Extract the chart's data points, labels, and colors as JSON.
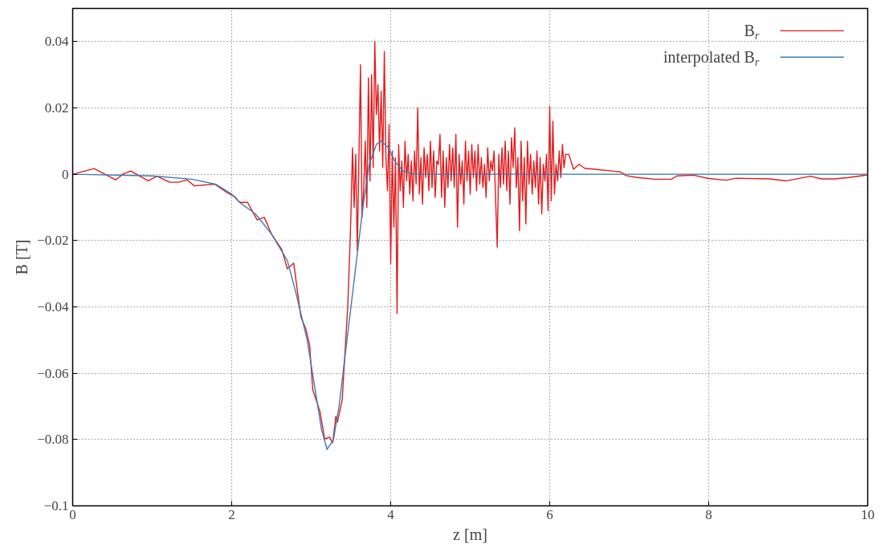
{
  "chart_data": {
    "type": "line",
    "xlabel": "z [m]",
    "ylabel": "B [T]",
    "xlim": [
      0,
      10
    ],
    "ylim": [
      -0.1,
      0.05
    ],
    "xticks": [
      0,
      2,
      4,
      6,
      8,
      10
    ],
    "yticks": [
      {
        "value": -0.1,
        "label": "−0.1"
      },
      {
        "value": -0.08,
        "label": "−0.08"
      },
      {
        "value": -0.06,
        "label": "−0.06"
      },
      {
        "value": -0.04,
        "label": "−0.04"
      },
      {
        "value": -0.02,
        "label": "−0.02"
      },
      0,
      0.02,
      0.04
    ],
    "grid": true,
    "legend": "top right",
    "line_style": "solid",
    "marker": "none",
    "series": [
      {
        "name": "B$_{r}$",
        "color": "#e41a1c",
        "x": [
          0,
          0.27,
          0.54,
          0.63,
          0.73,
          0.95,
          1.06,
          1.22,
          1.33,
          1.44,
          1.53,
          1.79,
          1.94,
          2.04,
          2.1,
          2.2,
          2.32,
          2.41,
          2.5,
          2.63,
          2.7,
          2.78,
          2.87,
          2.93,
          2.98,
          3.02,
          3.11,
          3.17,
          3.23,
          3.27,
          3.31,
          3.33,
          3.39,
          3.46,
          3.49,
          3.5,
          3.52,
          3.54,
          3.56,
          3.58,
          3.6,
          3.62,
          3.64,
          3.66,
          3.68,
          3.7,
          3.72,
          3.74,
          3.76,
          3.78,
          3.8,
          3.82,
          3.84,
          3.86,
          3.88,
          3.9,
          3.92,
          3.94,
          3.96,
          3.98,
          4.0,
          4.02,
          4.04,
          4.06,
          4.08,
          4.1,
          4.12,
          4.14,
          4.16,
          4.18,
          4.2,
          4.22,
          4.24,
          4.26,
          4.28,
          4.3,
          4.32,
          4.34,
          4.36,
          4.38,
          4.4,
          4.42,
          4.44,
          4.46,
          4.48,
          4.5,
          4.52,
          4.54,
          4.56,
          4.58,
          4.6,
          4.62,
          4.64,
          4.66,
          4.68,
          4.7,
          4.72,
          4.74,
          4.76,
          4.78,
          4.8,
          4.82,
          4.84,
          4.86,
          4.88,
          4.9,
          4.92,
          4.94,
          4.96,
          4.98,
          5.0,
          5.02,
          5.04,
          5.06,
          5.08,
          5.1,
          5.12,
          5.14,
          5.16,
          5.18,
          5.2,
          5.22,
          5.24,
          5.26,
          5.28,
          5.3,
          5.32,
          5.34,
          5.36,
          5.38,
          5.4,
          5.42,
          5.44,
          5.46,
          5.48,
          5.5,
          5.52,
          5.54,
          5.56,
          5.58,
          5.6,
          5.62,
          5.64,
          5.66,
          5.68,
          5.7,
          5.72,
          5.74,
          5.76,
          5.78,
          5.8,
          5.82,
          5.84,
          5.86,
          5.88,
          5.9,
          5.92,
          5.94,
          5.96,
          5.98,
          6.0,
          6.02,
          6.04,
          6.06,
          6.08,
          6.1,
          6.12,
          6.14,
          6.16,
          6.18,
          6.2,
          6.24,
          6.3,
          6.37,
          6.44,
          6.57,
          6.89,
          6.96,
          7.1,
          7.33,
          7.53,
          7.6,
          7.81,
          8.0,
          8.22,
          8.34,
          8.77,
          8.98,
          9.28,
          9.42,
          9.58,
          9.76,
          10
        ],
        "values": [
          0,
          0.0017,
          -0.0017,
          0,
          0.001,
          -0.002,
          -0.0006,
          -0.0024,
          -0.0024,
          -0.0017,
          -0.0035,
          -0.003,
          -0.0055,
          -0.0068,
          -0.0085,
          -0.0085,
          -0.0138,
          -0.013,
          -0.018,
          -0.0227,
          -0.0285,
          -0.0268,
          -0.043,
          -0.0465,
          -0.0515,
          -0.065,
          -0.0715,
          -0.0798,
          -0.0793,
          -0.081,
          -0.073,
          -0.0748,
          -0.068,
          -0.0398,
          -0.0198,
          -0.012,
          0.008,
          -0.01,
          0.006,
          -0.023,
          0.004,
          0.033,
          -0.013,
          -0.005,
          0.01,
          -0.01,
          0.029,
          -0.002,
          0.03,
          0.002,
          0.04,
          0.018,
          0.027,
          0.007,
          0.025,
          0.002,
          0.037,
          0.005,
          -0.005,
          0.015,
          -0.027,
          0.007,
          -0.016,
          0.005,
          -0.042,
          0.009,
          -0.005,
          0.004,
          -0.01,
          0.01,
          -0.002,
          0.006,
          -0.006,
          0.004,
          -0.008,
          0.007,
          -0.003,
          0.02,
          -0.006,
          0.005,
          -0.009,
          0.008,
          -0.001,
          0.006,
          -0.005,
          0.01,
          -0.004,
          0.007,
          -0.007,
          0.004,
          0.003,
          0.012,
          -0.007,
          0.007,
          -0.01,
          0.005,
          -0.004,
          0.009,
          -0.002,
          0.008,
          -0.004,
          0.012,
          -0.016,
          0.006,
          -0.003,
          0.004,
          -0.009,
          0.01,
          -0.002,
          0.007,
          -0.006,
          0.009,
          -0.001,
          0.007,
          -0.005,
          0.009,
          -0.003,
          0.005,
          -0.004,
          0.003,
          -0.007,
          0.008,
          -0.002,
          0.004,
          0.001,
          0.007,
          -0.008,
          -0.022,
          0.006,
          -0.004,
          0.008,
          -0.003,
          0.01,
          -0.005,
          0.007,
          -0.009,
          0.011,
          0.002,
          0.014,
          -0.004,
          0.005,
          -0.017,
          0.01,
          -0.008,
          0.005,
          -0.015,
          0.01,
          -0.003,
          0.006,
          -0.006,
          0.004,
          -0.004,
          0.007,
          -0.009,
          0.005,
          -0.012,
          0.003,
          -0.002,
          0.006,
          -0.011,
          0.0205,
          -0.008,
          0.016,
          -0.006,
          0.003,
          -0.002,
          0.007,
          -0.001,
          0.009,
          0.002,
          0.006,
          0.006,
          0.0015,
          0.003,
          0.0018,
          0.0015,
          0.0007,
          -0.0004,
          -0.001,
          -0.0015,
          -0.0015,
          -0.0005,
          -0.0003,
          -0.0013,
          -0.0018,
          -0.0012,
          -0.0014,
          -0.002,
          -0.0006,
          -0.0014,
          -0.0014,
          -0.001,
          -0.0002
        ]
      },
      {
        "name": "interpolated B$_{r}$",
        "color": "#377eb8",
        "x": [
          0,
          1.0,
          1.5,
          1.8,
          2.0,
          2.1,
          2.3,
          2.5,
          2.7,
          2.8,
          2.95,
          3.05,
          3.13,
          3.2,
          3.28,
          3.35,
          3.45,
          3.55,
          3.65,
          3.73,
          3.82,
          3.88,
          3.97,
          4.05,
          4.15,
          4.3,
          10
        ],
        "values": [
          0,
          -0.0005,
          -0.0015,
          -0.003,
          -0.006,
          -0.0085,
          -0.012,
          -0.018,
          -0.026,
          -0.035,
          -0.05,
          -0.065,
          -0.077,
          -0.083,
          -0.08,
          -0.07,
          -0.05,
          -0.03,
          -0.01,
          0.003,
          0.009,
          0.01,
          0.008,
          0.004,
          0.001,
          0,
          0
        ]
      }
    ]
  }
}
